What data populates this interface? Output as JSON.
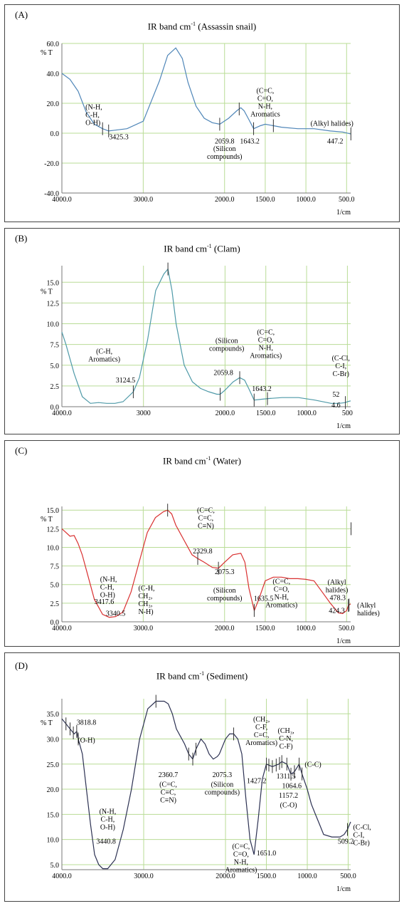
{
  "chart_data": [
    {
      "type": "line",
      "panel_label": "(A)",
      "title_pre": "IR band cm",
      "title_sup": "-1",
      "title_post": " (Assassin snail)",
      "xlabel": "1/cm",
      "ylabel": "% T",
      "xlim": [
        4000,
        450
      ],
      "ylim": [
        -40,
        60
      ],
      "x_ticks": [
        "4000.0",
        "3000.0",
        "2000.0",
        "1500.0",
        "1000.0",
        "500.0"
      ],
      "y_ticks": [
        {
          "v": 60,
          "t": "60.0"
        },
        {
          "v": 40,
          "t": "40.0"
        },
        {
          "v": 20,
          "t": "20.0"
        },
        {
          "v": 0,
          "t": "0.0"
        },
        {
          "v": -20,
          "t": "-20.0"
        },
        {
          "v": -40,
          "t": "-40.0"
        }
      ],
      "color": "#4f86b8",
      "series": [
        {
          "x": [
            4000,
            3900,
            3800,
            3700,
            3600,
            3500,
            3425,
            3350,
            3200,
            3000,
            2800,
            2700,
            2600,
            2520,
            2450,
            2350,
            2250,
            2150,
            2059,
            1950,
            1850,
            1800,
            1760,
            1700,
            1643,
            1560,
            1500,
            1400,
            1300,
            1100,
            900,
            700,
            550,
            447
          ],
          "y": [
            40,
            36,
            28,
            14,
            6,
            3,
            1.5,
            2,
            3,
            8,
            35,
            52,
            57,
            50,
            34,
            18,
            10,
            7,
            6,
            10,
            15,
            17,
            15,
            9,
            3,
            5,
            6,
            5,
            4,
            3,
            3,
            1.5,
            0.8,
            -0.5
          ]
        }
      ],
      "peaks": [
        {
          "x": 3425.3,
          "y": 1.5,
          "label": "3425.3",
          "lx": 3300,
          "ly": -4
        },
        {
          "x": 2059.8,
          "y": 6,
          "label": "2059.8",
          "lx": 2000,
          "ly": -7
        },
        {
          "x": 1643.2,
          "y": 3,
          "label": "1643.2",
          "lx": 1690,
          "ly": -7
        },
        {
          "x": 447.2,
          "y": -0.5,
          "label": "447.2",
          "lx": 640,
          "ly": -7
        }
      ],
      "ticks": [
        3500,
        3425.3,
        2059.8,
        1820,
        1643.2,
        1400,
        447.2
      ],
      "groups": [
        {
          "lines": [
            "(N-H,",
            "C-H,",
            "O-H)"
          ],
          "x": 3710,
          "y": 16,
          "align": "start"
        },
        {
          "lines": [
            "(Silicon",
            "compounds)"
          ],
          "x": 2000,
          "y": -12,
          "align": "middle"
        },
        {
          "lines": [
            "(C=C,",
            "C=O,",
            "N-H,",
            "Aromatics"
          ],
          "x": 1500,
          "y": 27,
          "align": "middle"
        },
        {
          "lines": [
            "(Alkyl halides)"
          ],
          "x": 680,
          "y": 5,
          "align": "middle"
        }
      ]
    },
    {
      "type": "line",
      "panel_label": "(B)",
      "title_pre": "IR band cm",
      "title_sup": "-1",
      "title_post": " (Clam)",
      "xlabel": "1/cm",
      "ylabel": "% T",
      "xlim": [
        4000,
        460
      ],
      "ylim": [
        0,
        17
      ],
      "x_ticks": [
        "4000.0",
        "3000",
        "2000.0",
        "1500.0",
        "1000.0",
        "500"
      ],
      "y_ticks": [
        {
          "v": 15,
          "t": "15.0"
        },
        {
          "v": 12.5,
          "t": "12.5"
        },
        {
          "v": 10,
          "t": "10.0"
        },
        {
          "v": 7.5,
          "t": "7.5"
        },
        {
          "v": 5,
          "t": "5.0"
        },
        {
          "v": 2.5,
          "t": "2.5"
        },
        {
          "v": 0,
          "t": "0.0"
        }
      ],
      "color": "#4f9aa8",
      "series": [
        {
          "x": [
            4000,
            3950,
            3850,
            3750,
            3650,
            3550,
            3450,
            3350,
            3250,
            3124,
            3050,
            2950,
            2850,
            2750,
            2700,
            2650,
            2600,
            2500,
            2400,
            2300,
            2200,
            2100,
            2059,
            2000,
            1900,
            1820,
            1760,
            1700,
            1643,
            1550,
            1450,
            1300,
            1100,
            900,
            700,
            600,
            524,
            500,
            460
          ],
          "y": [
            9,
            7.5,
            4,
            1.2,
            0.4,
            0.5,
            0.4,
            0.4,
            0.6,
            1.8,
            3.5,
            8,
            14,
            16,
            16.6,
            14,
            10,
            5,
            3,
            2.2,
            1.8,
            1.5,
            1.5,
            2,
            3,
            3.5,
            3.2,
            2,
            0.8,
            0.9,
            1,
            1.1,
            1.1,
            0.8,
            0.4,
            0.4,
            0.5,
            0.6,
            0.7
          ]
        }
      ],
      "peaks": [
        {
          "x": 3124.5,
          "y": 1.8,
          "label": "3124.5",
          "lx": 3220,
          "ly": 2.9
        },
        {
          "x": 2059.8,
          "y": 1.5,
          "label": "2059.8",
          "lx": 2020,
          "ly": 3.8
        },
        {
          "x": 1643.2,
          "y": 0.8,
          "label": "1643.2",
          "lx": 1550,
          "ly": 1.9
        },
        {
          "x": 524.6,
          "y": 0.5,
          "label": "52",
          "lx": 640,
          "ly": 1.2
        },
        {
          "x": 524.6,
          "y": 0.5,
          "label": "4.6",
          "lx": 640,
          "ly": -0.1
        }
      ],
      "ticks": [
        3124.5,
        2700,
        2059.8,
        1820,
        1643.2,
        1480,
        524.6
      ],
      "groups": [
        {
          "lines": [
            "(C-H,",
            "Aromatics)"
          ],
          "x": 3480,
          "y": 6.4,
          "align": "middle"
        },
        {
          "lines": [
            "(Silicon",
            "compounds)"
          ],
          "x": 1980,
          "y": 7.7,
          "align": "middle"
        },
        {
          "lines": [
            "(C=C,",
            "C=O,",
            "N-H,",
            "Aromatics)"
          ],
          "x": 1500,
          "y": 8.7,
          "align": "middle"
        },
        {
          "lines": [
            "(C-Cl,",
            "C-I,",
            "C-Br)"
          ],
          "x": 580,
          "y": 5.6,
          "align": "middle"
        }
      ]
    },
    {
      "type": "line",
      "panel_label": "(C)",
      "title_pre": "IR band cm",
      "title_sup": "-1",
      "title_post": " (Water)",
      "xlabel": "1/cm",
      "ylabel": "% T",
      "xlim": [
        4000,
        450
      ],
      "ylim": [
        0,
        15.5
      ],
      "x_ticks": [
        "4000.0",
        "3000.0",
        "2000.0",
        "1500.0",
        "1000.0",
        "500.0"
      ],
      "y_ticks": [
        {
          "v": 15,
          "t": "15.0"
        },
        {
          "v": 12.5,
          "t": "12.5"
        },
        {
          "v": 10,
          "t": "10.0"
        },
        {
          "v": 7.5,
          "t": "7.5"
        },
        {
          "v": 5,
          "t": "5.0"
        },
        {
          "v": 2.5,
          "t": "2.5"
        },
        {
          "v": 0,
          "t": "0.0"
        }
      ],
      "color": "#d93030",
      "series": [
        {
          "x": [
            4000,
            3950,
            3900,
            3850,
            3800,
            3750,
            3700,
            3650,
            3600,
            3500,
            3417,
            3340,
            3250,
            3150,
            3050,
            2950,
            2850,
            2750,
            2700,
            2650,
            2600,
            2500,
            2400,
            2329,
            2250,
            2150,
            2075,
            2000,
            1900,
            1800,
            1750,
            1700,
            1635,
            1580,
            1500,
            1400,
            1300,
            1200,
            1100,
            1000,
            900,
            800,
            700,
            600,
            550,
            500,
            478,
            450
          ],
          "y": [
            12.5,
            12,
            11.5,
            11.6,
            10.5,
            9,
            7,
            5,
            3,
            1,
            0.6,
            0.7,
            1.3,
            4,
            8,
            12,
            14,
            14.8,
            15,
            14.5,
            13,
            11,
            9,
            8.5,
            8,
            7.3,
            7.2,
            8,
            9,
            9.2,
            8,
            4.5,
            1.5,
            3,
            5.5,
            6,
            6,
            5.8,
            5.8,
            5.7,
            5.5,
            4,
            2.5,
            1.2,
            1.1,
            1.5,
            2.2,
            2.4
          ]
        }
      ],
      "peaks": [
        {
          "x": 3417.6,
          "y": 0.6,
          "label": "3417.6",
          "lx": 3480,
          "ly": 2.4
        },
        {
          "x": 3340.5,
          "y": 0.7,
          "label": "3340.5",
          "lx": 3340,
          "ly": 0.8
        },
        {
          "x": 2329.8,
          "y": 8.5,
          "label": "2329.8",
          "lx": 2270,
          "ly": 9.2
        },
        {
          "x": 2075.3,
          "y": 7.2,
          "label": "2075.3",
          "lx": 2000,
          "ly": 6.4
        },
        {
          "x": 1635.5,
          "y": 1.5,
          "label": "1635.5",
          "lx": 1520,
          "ly": 2.8
        },
        {
          "x": 478.3,
          "y": 2.2,
          "label": "478.3",
          "lx": 610,
          "ly": 2.9
        },
        {
          "x": 424.3,
          "y": 1.2,
          "label": "424.3",
          "lx": 620,
          "ly": 1.2
        }
      ],
      "ticks": [
        2700,
        2329.8,
        2075.3,
        1635.5,
        478.3,
        470,
        445
      ],
      "groups": [
        {
          "lines": [
            "(N-H,",
            "C-H,",
            "O-H)"
          ],
          "x": 3530,
          "y": 5.4,
          "align": "start"
        },
        {
          "lines": [
            "(C-H,",
            "CH₂,",
            "CH₃,",
            "N-H)"
          ],
          "x": 3060,
          "y": 4.2,
          "align": "start"
        },
        {
          "lines": [
            "(C=C,",
            "C=C,",
            "C≡N)"
          ],
          "x": 2230,
          "y": 14.7,
          "align": "middle"
        },
        {
          "lines": [
            "(Silicon",
            "compounds)"
          ],
          "x": 2000,
          "y": 3.9,
          "align": "middle"
        },
        {
          "lines": [
            "(C=C,",
            "C=O,",
            "N-H,",
            "Aromatics)"
          ],
          "x": 1300,
          "y": 5.1,
          "align": "middle"
        },
        {
          "lines": [
            "(Alkyl",
            "halides)"
          ],
          "x": 620,
          "y": 5,
          "align": "middle"
        },
        {
          "lines": [
            "(Alkyl",
            "halides)"
          ],
          "x": 370,
          "y": 1.9,
          "align": "start"
        }
      ]
    },
    {
      "type": "line",
      "panel_label": "(D)",
      "title_pre": "IR band cm",
      "title_sup": "-1",
      "title_post": " (Sediment)",
      "xlabel": "1/cm",
      "ylabel": "% T",
      "xlim": [
        4000,
        470
      ],
      "ylim": [
        4,
        38
      ],
      "x_ticks": [
        "4000.0",
        "3000.0",
        "2000.0",
        "1500.0",
        "1000.0",
        "500.0"
      ],
      "y_ticks": [
        {
          "v": 35,
          "t": "35.0"
        },
        {
          "v": 30,
          "t": "30.0"
        },
        {
          "v": 25,
          "t": "25.0"
        },
        {
          "v": 20,
          "t": "20.0"
        },
        {
          "v": 15,
          "t": "15.0"
        },
        {
          "v": 10,
          "t": "10.0"
        },
        {
          "v": 5,
          "t": "5.0"
        }
      ],
      "color": "#2c3152",
      "series": [
        {
          "x": [
            4000,
            3950,
            3900,
            3850,
            3818,
            3800,
            3750,
            3700,
            3650,
            3600,
            3550,
            3500,
            3440,
            3350,
            3250,
            3150,
            3050,
            2950,
            2850,
            2750,
            2700,
            2650,
            2600,
            2500,
            2450,
            2400,
            2360,
            2300,
            2250,
            2200,
            2150,
            2100,
            2075,
            2000,
            1950,
            1900,
            1850,
            1800,
            1750,
            1700,
            1651,
            1600,
            1550,
            1500,
            1427,
            1350,
            1311,
            1250,
            1200,
            1157,
            1100,
            1064,
            1000,
            950,
            900,
            850,
            800,
            700,
            650,
            600,
            550,
            509,
            470
          ],
          "y": [
            34,
            33,
            32,
            31,
            31.5,
            30,
            27,
            20,
            13,
            7,
            5,
            4.2,
            4.2,
            6,
            12,
            20,
            30,
            36,
            37.5,
            37.5,
            37,
            35,
            32,
            29,
            27,
            26,
            28,
            30,
            29,
            27,
            26,
            26.5,
            27,
            30,
            31,
            31,
            30,
            27,
            18,
            10,
            7,
            14,
            22,
            25,
            24.5,
            25,
            25.5,
            25,
            23,
            23.5,
            25,
            23,
            20,
            17,
            15,
            13,
            11,
            10.5,
            10.5,
            10.5,
            11,
            12,
            13.5
          ]
        }
      ],
      "peaks": [
        {
          "x": 3818.8,
          "y": 31.5,
          "label": "3818.8",
          "lx": 3700,
          "ly": 32.8
        },
        {
          "x": 3440.8,
          "y": 4.2,
          "label": "3440.8",
          "lx": 3460,
          "ly": 9.2
        },
        {
          "x": 2360.7,
          "y": 26,
          "label": "2360.7",
          "lx": 2700,
          "ly": 22.4
        },
        {
          "x": 2075.3,
          "y": 26.5,
          "label": "2075.3",
          "lx": 2040,
          "ly": 22.4
        },
        {
          "x": 1651.0,
          "y": 7,
          "label": "1651.0",
          "lx": 1500,
          "ly": 6.8
        },
        {
          "x": 1427.2,
          "y": 24.5,
          "label": "1427.2",
          "lx": 1620,
          "ly": 21.2
        },
        {
          "x": 1311.5,
          "y": 25,
          "label": "1311.5",
          "lx": 1260,
          "ly": 22.1
        },
        {
          "x": 1064.6,
          "y": 23,
          "label": "1064.6",
          "lx": 1190,
          "ly": 20.2
        },
        {
          "x": 1157.2,
          "y": 23.5,
          "label": "1157.2",
          "lx": 1230,
          "ly": 18.3
        },
        {
          "x": 509.2,
          "y": 12,
          "label": "509.2",
          "lx": 530,
          "ly": 9.2
        }
      ],
      "ticks": [
        3950,
        3900,
        3860,
        3818.8,
        3800,
        2850,
        2450,
        2400,
        2360.7,
        1900,
        1500,
        1470,
        1427.2,
        1380,
        1340,
        1311.5,
        1250,
        1200,
        1157.2,
        1100,
        1064.6,
        509.2
      ],
      "groups": [
        {
          "lines": [
            "(O-H)"
          ],
          "x": 3700,
          "y": 29.3,
          "align": "middle"
        },
        {
          "lines": [
            "(N-H,",
            "C-H,",
            "O-H)"
          ],
          "x": 3440,
          "y": 15.1,
          "align": "middle"
        },
        {
          "lines": [
            "(C=C,",
            "C≡C,",
            "C≡N)"
          ],
          "x": 2700,
          "y": 20.5,
          "align": "middle"
        },
        {
          "lines": [
            "(Silicon",
            "compounds)"
          ],
          "x": 2040,
          "y": 20.5,
          "align": "middle"
        },
        {
          "lines": [
            "(C=C,",
            "C=O,",
            "N-H,",
            "Aromatics)"
          ],
          "x": 1810,
          "y": 8.2,
          "align": "middle"
        },
        {
          "lines": [
            "(CH₂,",
            "C-F,",
            "C=C,",
            "Aromatics)"
          ],
          "x": 1560,
          "y": 33.5,
          "align": "middle"
        },
        {
          "lines": [
            "(CH₃,",
            "C-N,",
            "C-F)"
          ],
          "x": 1260,
          "y": 31.2,
          "align": "middle"
        },
        {
          "lines": [
            "(C-C)"
          ],
          "x": 930,
          "y": 24.5,
          "align": "middle"
        },
        {
          "lines": [
            "(C-O)"
          ],
          "x": 1230,
          "y": 16.4,
          "align": "middle"
        },
        {
          "lines": [
            "(C-Cl,",
            "C-I,",
            "C-Br)"
          ],
          "x": 440,
          "y": 12,
          "align": "start"
        }
      ]
    }
  ]
}
